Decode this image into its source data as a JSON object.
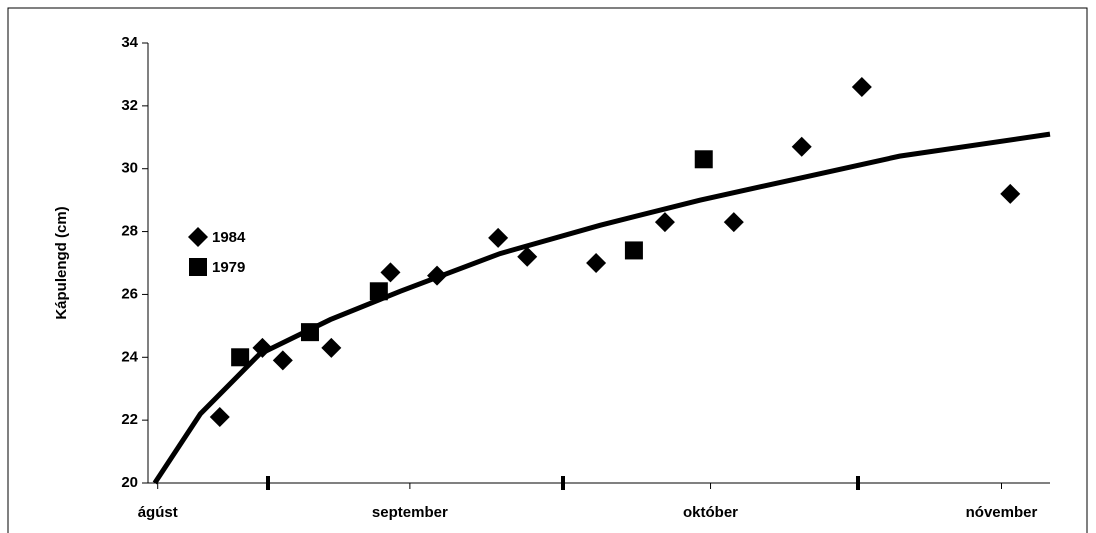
{
  "chart_data": {
    "type": "scatter",
    "y_label": "Kápulengd (cm)",
    "xlim": [
      0,
      93
    ],
    "xticks": [
      {
        "value": 1,
        "label": "ágúst"
      },
      {
        "value": 27,
        "label": "september"
      },
      {
        "value": 58,
        "label": "október"
      },
      {
        "value": 88,
        "label": "nóvember"
      }
    ],
    "ylim": [
      20,
      34
    ],
    "yticks": [
      20,
      22,
      24,
      26,
      28,
      30,
      32,
      34
    ],
    "series": [
      {
        "name": "1984",
        "marker": "diamond",
        "color": "#000000",
        "x": [
          7.4,
          11.8,
          13.9,
          18.9,
          25.0,
          29.8,
          36.1,
          39.1,
          46.2,
          53.3,
          60.4,
          67.4,
          73.6,
          88.9
        ],
        "values": [
          22.1,
          24.3,
          23.9,
          24.3,
          26.7,
          26.6,
          27.8,
          27.2,
          27.0,
          28.3,
          28.3,
          30.7,
          32.6,
          29.2
        ]
      },
      {
        "name": "1979",
        "marker": "square",
        "color": "#000000",
        "x": [
          9.5,
          16.7,
          23.8,
          50.1,
          57.3
        ],
        "values": [
          24.0,
          24.8,
          26.1,
          27.4,
          30.3
        ]
      }
    ],
    "trendline": {
      "color": "#000000",
      "x": [
        0.7,
        5.4,
        11.5,
        18.8,
        26,
        36.3,
        46.6,
        56.9,
        67.2,
        77.5,
        93
      ],
      "values": [
        20,
        22.2,
        24.1,
        25.2,
        26.1,
        27.3,
        28.2,
        29.0,
        29.7,
        30.4,
        31.1
      ]
    }
  }
}
